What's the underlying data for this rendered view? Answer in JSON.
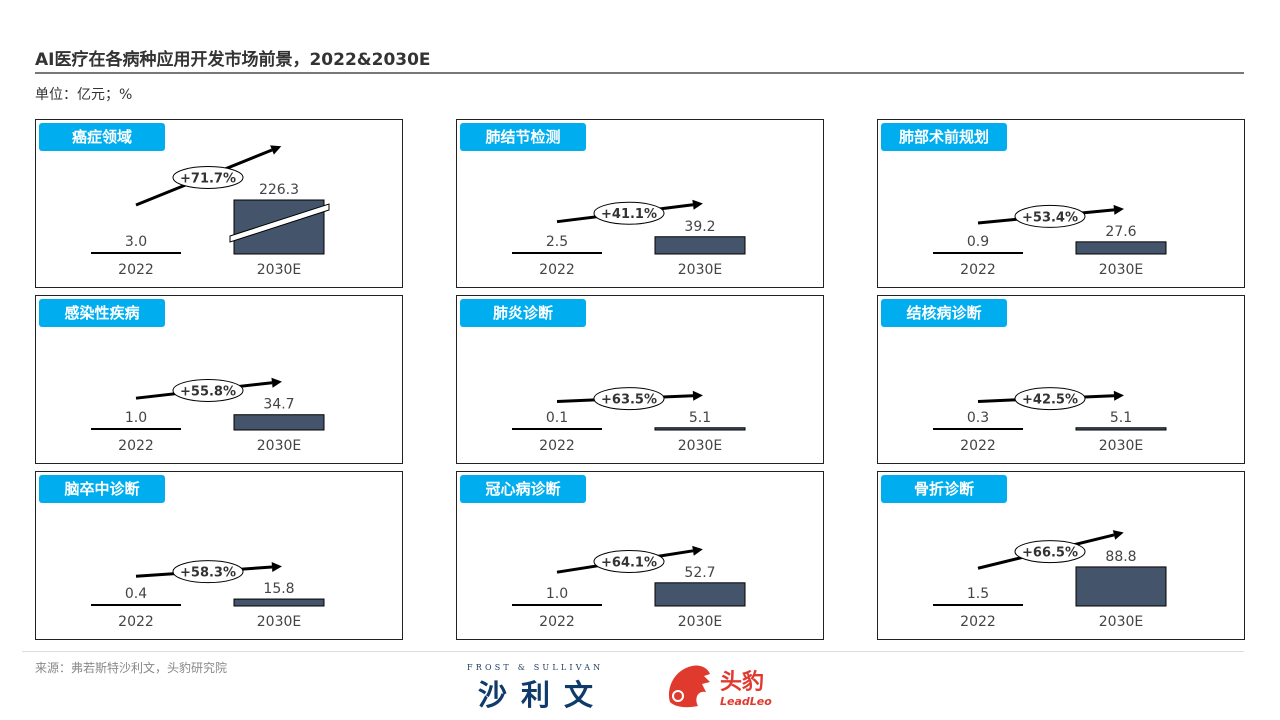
{
  "header": {
    "title": "AI医疗在各病种应用开发市场前景，2022&2030E",
    "unit": "单位：亿元；%"
  },
  "footer": {
    "source": "来源：弗若斯特沙利文，头豹研究院",
    "fs_logo_en": "FROST & SULLIVAN",
    "fs_logo_cn": "沙利文",
    "leadleo_cn": "头豹",
    "leadleo_en": "LeadLeo"
  },
  "colors": {
    "bar": "#44546a",
    "tag": "#00adef",
    "brand_red": "#e03a2f"
  },
  "chart_data": [
    {
      "type": "bar",
      "title": "癌症领域",
      "categories": [
        "2022",
        "2030E"
      ],
      "values": [
        3.0,
        226.3
      ],
      "labels": [
        "3.0",
        "226.3"
      ],
      "cagr": "+71.7%",
      "axis_break": true
    },
    {
      "type": "bar",
      "title": "肺结节检测",
      "categories": [
        "2022",
        "2030E"
      ],
      "values": [
        2.5,
        39.2
      ],
      "labels": [
        "2.5",
        "39.2"
      ],
      "cagr": "+41.1%"
    },
    {
      "type": "bar",
      "title": "肺部术前规划",
      "categories": [
        "2022",
        "2030E"
      ],
      "values": [
        0.9,
        27.6
      ],
      "labels": [
        "0.9",
        "27.6"
      ],
      "cagr": "+53.4%"
    },
    {
      "type": "bar",
      "title": "感染性疾病",
      "categories": [
        "2022",
        "2030E"
      ],
      "values": [
        1.0,
        34.7
      ],
      "labels": [
        "1.0",
        "34.7"
      ],
      "cagr": "+55.8%"
    },
    {
      "type": "bar",
      "title": "肺炎诊断",
      "categories": [
        "2022",
        "2030E"
      ],
      "values": [
        0.1,
        5.1
      ],
      "labels": [
        "0.1",
        "5.1"
      ],
      "cagr": "+63.5%"
    },
    {
      "type": "bar",
      "title": "结核病诊断",
      "categories": [
        "2022",
        "2030E"
      ],
      "values": [
        0.3,
        5.1
      ],
      "labels": [
        "0.3",
        "5.1"
      ],
      "cagr": "+42.5%"
    },
    {
      "type": "bar",
      "title": "脑卒中诊断",
      "categories": [
        "2022",
        "2030E"
      ],
      "values": [
        0.4,
        15.8
      ],
      "labels": [
        "0.4",
        "15.8"
      ],
      "cagr": "+58.3%"
    },
    {
      "type": "bar",
      "title": "冠心病诊断",
      "categories": [
        "2022",
        "2030E"
      ],
      "values": [
        1.0,
        52.7
      ],
      "labels": [
        "1.0",
        "52.7"
      ],
      "cagr": "+64.1%"
    },
    {
      "type": "bar",
      "title": "骨折诊断",
      "categories": [
        "2022",
        "2030E"
      ],
      "values": [
        1.5,
        88.8
      ],
      "labels": [
        "1.5",
        "88.8"
      ],
      "cagr": "+66.5%"
    }
  ]
}
